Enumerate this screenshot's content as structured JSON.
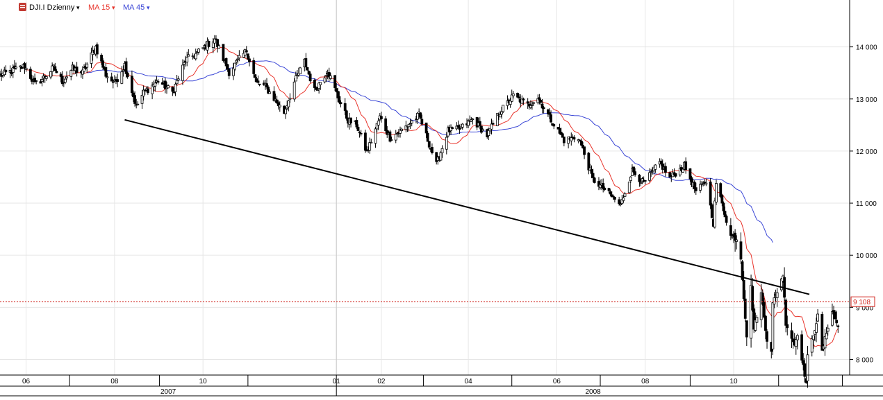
{
  "legend": {
    "symbol_label": "DJI.I Dzienny",
    "ma_fast_label": "MA 15",
    "ma_slow_label": "MA 45",
    "dropdown_glyph": "▾"
  },
  "colors": {
    "ma_fast": "#e8332a",
    "ma_slow": "#3a46d6",
    "candle_up": "#ffffff",
    "candle_down": "#000000",
    "trendline": "#000000",
    "price_line": "#d0201a",
    "grid": "#e6e6e6"
  },
  "chart_data": {
    "type": "candlestick",
    "symbol": "DJI.I",
    "interval": "Dzienny",
    "ylim": [
      7700,
      14900
    ],
    "y_ticks": [
      {
        "value": 8000,
        "label": "8 000"
      },
      {
        "value": 9000,
        "label": "9 000"
      },
      {
        "value": 10000,
        "label": "10 000"
      },
      {
        "value": 11000,
        "label": "11 000"
      },
      {
        "value": 12000,
        "label": "12 000"
      },
      {
        "value": 13000,
        "label": "13 000"
      },
      {
        "value": 14000,
        "label": "14 000"
      }
    ],
    "last_price": {
      "value": 9108,
      "label": "9 108"
    },
    "x_range": [
      "2007-05-14",
      "2008-12-20"
    ],
    "month_ticks": [
      {
        "date": "2007-06-01",
        "label": "06"
      },
      {
        "date": "2007-08-01",
        "label": "08"
      },
      {
        "date": "2007-10-01",
        "label": "10"
      },
      {
        "date": "2008-01-01",
        "label": "01"
      },
      {
        "date": "2008-02-01",
        "label": "02"
      },
      {
        "date": "2008-04-01",
        "label": "04"
      },
      {
        "date": "2008-06-01",
        "label": "06"
      },
      {
        "date": "2008-08-01",
        "label": "08"
      },
      {
        "date": "2008-10-01",
        "label": "10"
      }
    ],
    "years": [
      {
        "label": "2007",
        "start": "2007-05-14",
        "end": "2008-01-01"
      },
      {
        "label": "2008",
        "start": "2008-01-01",
        "end": "2008-12-20"
      }
    ],
    "price_path": [
      [
        "2007-05-14",
        13450
      ],
      [
        "2007-05-31",
        13630
      ],
      [
        "2007-06-07",
        13280
      ],
      [
        "2007-06-12",
        13380
      ],
      [
        "2007-06-20",
        13600
      ],
      [
        "2007-06-26",
        13340
      ],
      [
        "2007-07-03",
        13580
      ],
      [
        "2007-07-10",
        13500
      ],
      [
        "2007-07-19",
        14000
      ],
      [
        "2007-07-26",
        13470
      ],
      [
        "2007-08-01",
        13300
      ],
      [
        "2007-08-08",
        13660
      ],
      [
        "2007-08-16",
        12850
      ],
      [
        "2007-08-21",
        13120
      ],
      [
        "2007-08-31",
        13350
      ],
      [
        "2007-09-10",
        13130
      ],
      [
        "2007-09-19",
        13740
      ],
      [
        "2007-09-27",
        13880
      ],
      [
        "2007-10-09",
        14160
      ],
      [
        "2007-10-19",
        13520
      ],
      [
        "2007-10-31",
        13930
      ],
      [
        "2007-11-07",
        13300
      ],
      [
        "2007-11-13",
        13240
      ],
      [
        "2007-11-26",
        12740
      ],
      [
        "2007-12-03",
        13320
      ],
      [
        "2007-12-10",
        13720
      ],
      [
        "2007-12-17",
        13160
      ],
      [
        "2007-12-26",
        13550
      ],
      [
        "2008-01-02",
        13040
      ],
      [
        "2008-01-09",
        12590
      ],
      [
        "2008-01-15",
        12500
      ],
      [
        "2008-01-22",
        11970
      ],
      [
        "2008-01-31",
        12650
      ],
      [
        "2008-02-07",
        12250
      ],
      [
        "2008-02-14",
        12380
      ],
      [
        "2008-02-27",
        12690
      ],
      [
        "2008-03-10",
        11740
      ],
      [
        "2008-03-18",
        12390
      ],
      [
        "2008-03-26",
        12420
      ],
      [
        "2008-04-04",
        12610
      ],
      [
        "2008-04-14",
        12300
      ],
      [
        "2008-04-22",
        12720
      ],
      [
        "2008-05-02",
        13060
      ],
      [
        "2008-05-12",
        12880
      ],
      [
        "2008-05-19",
        13030
      ],
      [
        "2008-05-28",
        12600
      ],
      [
        "2008-06-06",
        12210
      ],
      [
        "2008-06-16",
        12270
      ],
      [
        "2008-06-26",
        11450
      ],
      [
        "2008-07-03",
        11290
      ],
      [
        "2008-07-15",
        10960
      ],
      [
        "2008-07-23",
        11630
      ],
      [
        "2008-07-31",
        11380
      ],
      [
        "2008-08-11",
        11780
      ],
      [
        "2008-08-18",
        11480
      ],
      [
        "2008-08-28",
        11720
      ],
      [
        "2008-09-05",
        11220
      ],
      [
        "2008-09-12",
        11420
      ],
      [
        "2008-09-17",
        10610
      ],
      [
        "2008-09-19",
        11390
      ],
      [
        "2008-09-29",
        10370
      ],
      [
        "2008-10-03",
        10320
      ],
      [
        "2008-10-06",
        9950
      ],
      [
        "2008-10-10",
        8450
      ],
      [
        "2008-10-13",
        9390
      ],
      [
        "2008-10-15",
        8580
      ],
      [
        "2008-10-20",
        9260
      ],
      [
        "2008-10-24",
        8380
      ],
      [
        "2008-10-27",
        8180
      ],
      [
        "2008-10-28",
        9070
      ],
      [
        "2008-11-04",
        9630
      ],
      [
        "2008-11-06",
        8700
      ],
      [
        "2008-11-12",
        8280
      ],
      [
        "2008-11-14",
        8500
      ],
      [
        "2008-11-20",
        7550
      ],
      [
        "2008-11-21",
        8050
      ],
      [
        "2008-11-25",
        8480
      ],
      [
        "2008-11-28",
        8830
      ],
      [
        "2008-12-01",
        8150
      ],
      [
        "2008-12-05",
        8640
      ],
      [
        "2008-12-08",
        8930
      ],
      [
        "2008-12-12",
        8630
      ]
    ],
    "series": [
      {
        "name": "MA 15",
        "key": "ma15"
      },
      {
        "name": "MA 45",
        "key": "ma45"
      }
    ],
    "annotations": [
      {
        "type": "trendline",
        "from": [
          "2007-08-08",
          12600
        ],
        "to": [
          "2008-12-20",
          9250
        ]
      },
      {
        "type": "hline",
        "value": 9108
      }
    ]
  }
}
